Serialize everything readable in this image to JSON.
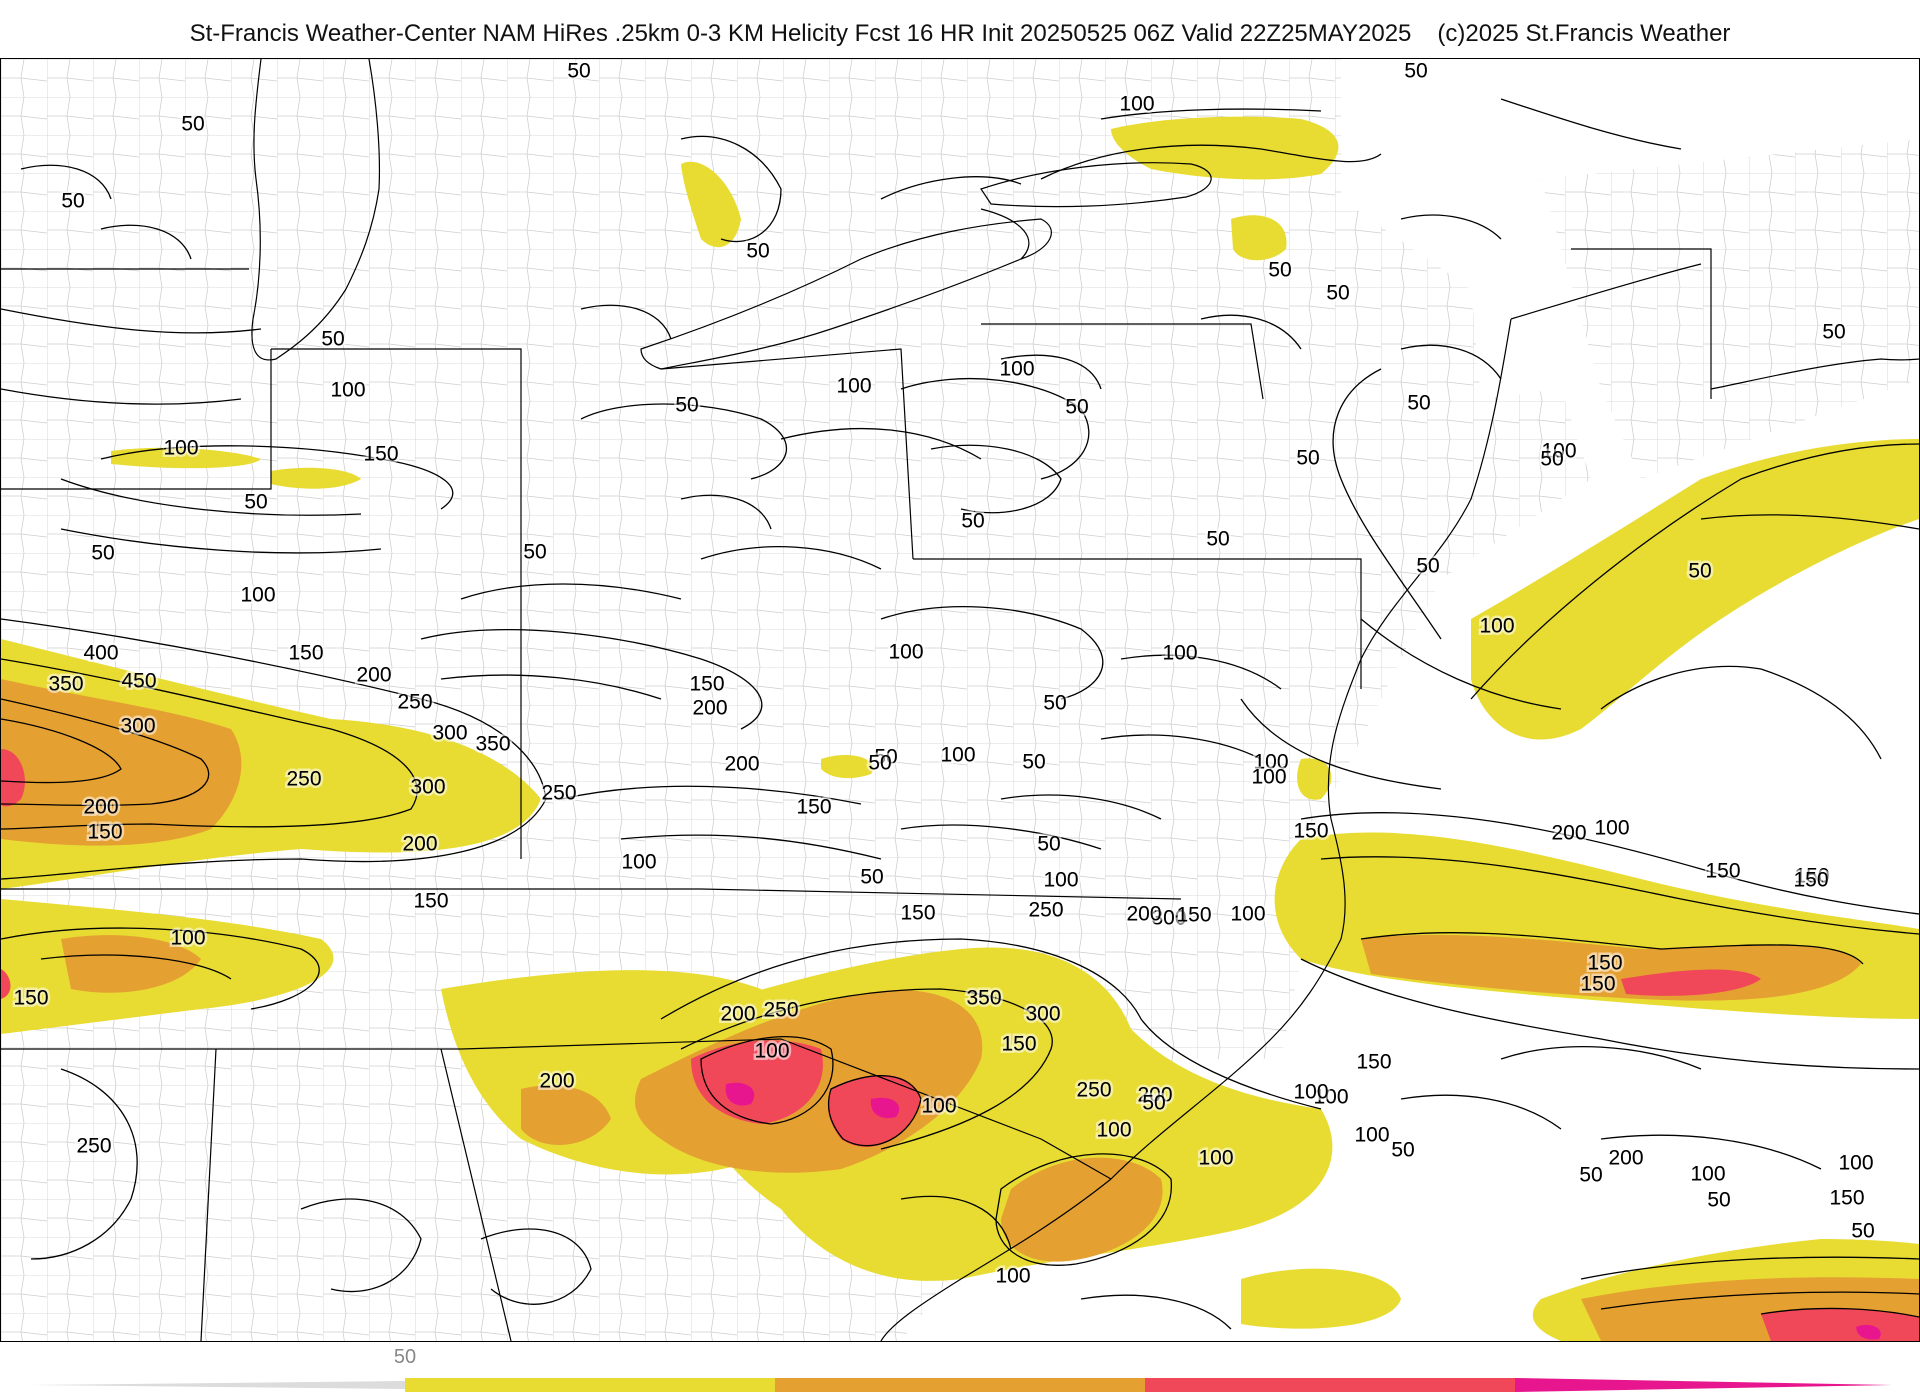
{
  "header": {
    "title": "St-Francis Weather-Center NAM HiRes .25km 0-3 KM Helicity Fcst 16 HR Init 20250525 06Z  Valid 22Z25MAY2025",
    "credit": "(c)2025 St.Francis Weather"
  },
  "legend": {
    "tick_label": "50",
    "bins": [
      {
        "color": "#e8dc32"
      },
      {
        "color": "#e5a032"
      },
      {
        "color": "#f04858"
      },
      {
        "color": "#e8168e"
      }
    ]
  },
  "colors": {
    "helicity_50": "#e8dc32",
    "helicity_150": "#e5a032",
    "helicity_250": "#f04858",
    "helicity_350": "#e8168e",
    "contour": "#000000",
    "county_border": "#c8c8c8",
    "state_border": "#000000"
  },
  "contour_labels": [
    {
      "text": "50"
    },
    {
      "text": "50"
    },
    {
      "text": "50"
    },
    {
      "text": "100"
    },
    {
      "text": "50"
    },
    {
      "text": "50"
    },
    {
      "text": "50"
    },
    {
      "text": "50"
    },
    {
      "text": "50"
    },
    {
      "text": "50"
    },
    {
      "text": "100"
    },
    {
      "text": "150"
    },
    {
      "text": "100"
    },
    {
      "text": "50"
    },
    {
      "text": "50"
    },
    {
      "text": "100"
    },
    {
      "text": "50"
    },
    {
      "text": "100"
    },
    {
      "text": "100"
    },
    {
      "text": "50"
    },
    {
      "text": "50"
    },
    {
      "text": "50"
    },
    {
      "text": "50"
    },
    {
      "text": "50"
    },
    {
      "text": "50"
    },
    {
      "text": "50"
    },
    {
      "text": "50"
    },
    {
      "text": "100"
    },
    {
      "text": "50"
    },
    {
      "text": "100"
    },
    {
      "text": "400"
    },
    {
      "text": "150"
    },
    {
      "text": "350"
    },
    {
      "text": "450"
    },
    {
      "text": "200"
    },
    {
      "text": "250"
    },
    {
      "text": "300"
    },
    {
      "text": "350"
    },
    {
      "text": "300"
    },
    {
      "text": "150"
    },
    {
      "text": "200"
    },
    {
      "text": "100"
    },
    {
      "text": "100"
    },
    {
      "text": "50"
    },
    {
      "text": "250"
    },
    {
      "text": "250"
    },
    {
      "text": "300"
    },
    {
      "text": "200"
    },
    {
      "text": "200"
    },
    {
      "text": "150"
    },
    {
      "text": "100"
    },
    {
      "text": "50"
    },
    {
      "text": "150"
    },
    {
      "text": "100"
    },
    {
      "text": "50"
    },
    {
      "text": "50"
    },
    {
      "text": "100"
    },
    {
      "text": "50"
    },
    {
      "text": "200"
    },
    {
      "text": "100"
    },
    {
      "text": "100"
    },
    {
      "text": "150"
    },
    {
      "text": "150"
    },
    {
      "text": "200"
    },
    {
      "text": "150"
    },
    {
      "text": "50"
    },
    {
      "text": "150"
    },
    {
      "text": "100"
    },
    {
      "text": "150"
    },
    {
      "text": "250"
    },
    {
      "text": "300"
    },
    {
      "text": "200"
    },
    {
      "text": "150"
    },
    {
      "text": "100"
    },
    {
      "text": "150"
    },
    {
      "text": "100"
    },
    {
      "text": "100"
    },
    {
      "text": "250"
    },
    {
      "text": "200"
    },
    {
      "text": "250"
    },
    {
      "text": "300"
    },
    {
      "text": "350"
    },
    {
      "text": "150"
    },
    {
      "text": "200"
    },
    {
      "text": "150"
    },
    {
      "text": "150"
    },
    {
      "text": "200"
    },
    {
      "text": "100"
    },
    {
      "text": "50"
    },
    {
      "text": "150"
    },
    {
      "text": "100"
    },
    {
      "text": "150"
    },
    {
      "text": "100"
    },
    {
      "text": "100"
    },
    {
      "text": "100"
    },
    {
      "text": "100"
    },
    {
      "text": "50"
    },
    {
      "text": "50"
    },
    {
      "text": "100"
    },
    {
      "text": "50"
    },
    {
      "text": "150"
    },
    {
      "text": "100"
    },
    {
      "text": "50"
    },
    {
      "text": "200"
    },
    {
      "text": "250"
    },
    {
      "text": "100"
    },
    {
      "text": "100"
    },
    {
      "text": "100"
    }
  ]
}
